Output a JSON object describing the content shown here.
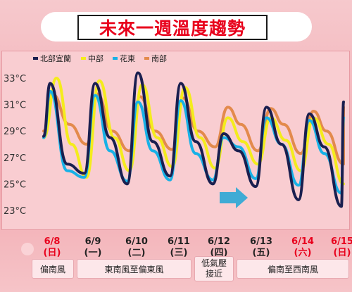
{
  "title": "未來一週溫度趨勢",
  "colors": {
    "north_yilan": "#1a1f4f",
    "central": "#f4ec1c",
    "hualien_taitung": "#18b1e6",
    "south": "#e38a4c",
    "weekend": "#e8001c",
    "weekday": "#222222"
  },
  "chart_data": {
    "type": "line",
    "ylim": [
      22,
      34.5
    ],
    "yticks": [
      "33°C",
      "31°C",
      "29°C",
      "27°C",
      "25°C",
      "23°C"
    ],
    "ytick_values": [
      33,
      31,
      29,
      27,
      25,
      23
    ],
    "x_range": [
      0,
      7
    ],
    "dates": [
      {
        "date": "6/8",
        "weekday": "(日)",
        "weekend": true
      },
      {
        "date": "6/9",
        "weekday": "(一)",
        "weekend": false
      },
      {
        "date": "6/10",
        "weekday": "(二)",
        "weekend": false
      },
      {
        "date": "6/11",
        "weekday": "(三)",
        "weekend": false
      },
      {
        "date": "6/12",
        "weekday": "(四)",
        "weekend": false
      },
      {
        "date": "6/13",
        "weekday": "(五)",
        "weekend": false
      },
      {
        "date": "6/14",
        "weekday": "(六)",
        "weekend": true
      },
      {
        "date": "6/15",
        "weekday": "(日)",
        "weekend": true
      }
    ],
    "series": [
      {
        "name": "北部宜蘭",
        "color_key": "north_yilan",
        "points": [
          [
            0,
            28.6
          ],
          [
            0.15,
            32.6
          ],
          [
            0.55,
            26.5
          ],
          [
            0.95,
            25.8
          ],
          [
            1.2,
            32.6
          ],
          [
            1.55,
            28.5
          ],
          [
            1.95,
            25.0
          ],
          [
            2.2,
            33.4
          ],
          [
            2.55,
            28.2
          ],
          [
            2.95,
            25.6
          ],
          [
            3.2,
            32.6
          ],
          [
            3.55,
            28.2
          ],
          [
            3.95,
            25.0
          ],
          [
            4.2,
            28.8
          ],
          [
            4.55,
            27.5
          ],
          [
            4.95,
            24.8
          ],
          [
            5.2,
            30.8
          ],
          [
            5.55,
            28.0
          ],
          [
            5.95,
            23.8
          ],
          [
            6.2,
            30.3
          ],
          [
            6.55,
            27.8
          ],
          [
            6.95,
            23.3
          ],
          [
            7.0,
            31.2
          ]
        ]
      },
      {
        "name": "中部",
        "color_key": "central",
        "points": [
          [
            0,
            28.5
          ],
          [
            0.3,
            33.0
          ],
          [
            0.65,
            28.0
          ],
          [
            1.0,
            25.5
          ],
          [
            1.3,
            32.8
          ],
          [
            1.65,
            28.5
          ],
          [
            2.0,
            26.0
          ],
          [
            2.3,
            32.5
          ],
          [
            2.65,
            28.5
          ],
          [
            3.0,
            26.3
          ],
          [
            3.3,
            32.3
          ],
          [
            3.65,
            28.5
          ],
          [
            4.0,
            26.2
          ],
          [
            4.3,
            30.0
          ],
          [
            4.65,
            28.2
          ],
          [
            5.0,
            26.5
          ],
          [
            5.3,
            30.0
          ],
          [
            5.65,
            28.3
          ],
          [
            6.0,
            26.0
          ],
          [
            6.3,
            30.0
          ],
          [
            6.65,
            28.0
          ],
          [
            7.0,
            25.0
          ]
        ]
      },
      {
        "name": "花東",
        "color_key": "hualien_taitung",
        "points": [
          [
            0,
            28.5
          ],
          [
            0.15,
            32.0
          ],
          [
            0.55,
            26.0
          ],
          [
            0.95,
            25.5
          ],
          [
            1.2,
            31.7
          ],
          [
            1.55,
            27.5
          ],
          [
            1.95,
            25.2
          ],
          [
            2.2,
            31.2
          ],
          [
            2.55,
            27.5
          ],
          [
            2.95,
            25.3
          ],
          [
            3.2,
            31.3
          ],
          [
            3.55,
            27.3
          ],
          [
            3.95,
            25.3
          ],
          [
            4.2,
            28.5
          ],
          [
            4.55,
            27.8
          ],
          [
            4.95,
            25.4
          ],
          [
            5.2,
            30.0
          ],
          [
            5.55,
            28.0
          ],
          [
            5.95,
            24.9
          ],
          [
            6.2,
            29.8
          ],
          [
            6.55,
            27.3
          ],
          [
            6.95,
            24.3
          ],
          [
            7.0,
            30.0
          ]
        ]
      },
      {
        "name": "南部",
        "color_key": "south",
        "points": [
          [
            0,
            29.0
          ],
          [
            0.2,
            31.8
          ],
          [
            0.6,
            29.5
          ],
          [
            1.0,
            28.0
          ],
          [
            1.25,
            31.8
          ],
          [
            1.6,
            29.0
          ],
          [
            2.0,
            27.5
          ],
          [
            2.25,
            31.6
          ],
          [
            2.6,
            29.0
          ],
          [
            3.0,
            27.6
          ],
          [
            3.25,
            31.5
          ],
          [
            3.6,
            29.0
          ],
          [
            4.0,
            27.8
          ],
          [
            4.3,
            30.8
          ],
          [
            4.6,
            29.5
          ],
          [
            5.0,
            27.5
          ],
          [
            5.3,
            30.7
          ],
          [
            5.6,
            29.5
          ],
          [
            6.0,
            27.3
          ],
          [
            6.3,
            30.5
          ],
          [
            6.6,
            29.0
          ],
          [
            7.0,
            26.5
          ],
          [
            7.0,
            30.8
          ]
        ]
      }
    ]
  },
  "wind_segments": [
    {
      "label": "偏南風"
    },
    {
      "label": "東南風至偏東風"
    },
    {
      "label": "低氣壓",
      "label2": "接近"
    },
    {
      "label": "偏南至西南風"
    }
  ]
}
